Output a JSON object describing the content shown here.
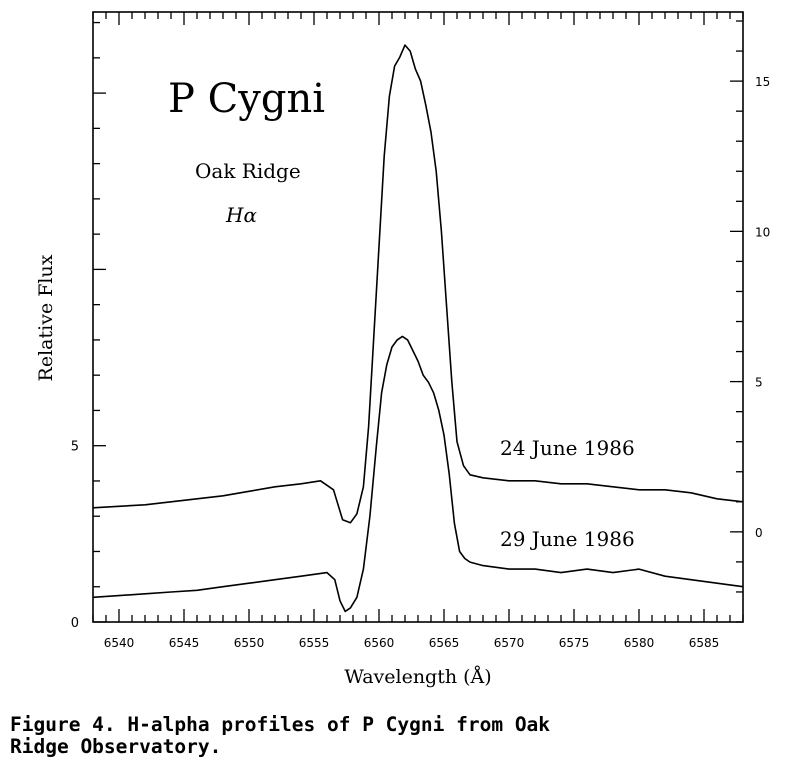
{
  "chart_data": {
    "type": "line",
    "title": "P Cygni",
    "annotations": [
      "Oak Ridge",
      "Hα"
    ],
    "xlabel": "Wavelength (Å)",
    "ylabel": "Relative Flux",
    "xlim": [
      6538,
      6588
    ],
    "x_ticks": [
      6540,
      6545,
      6550,
      6555,
      6560,
      6565,
      6570,
      6575,
      6580,
      6585
    ],
    "left_axis": {
      "ylim": [
        0,
        17.3
      ],
      "ticks": [
        0,
        5
      ]
    },
    "right_axis": {
      "ylim": [
        -3,
        17.3
      ],
      "ticks": [
        0,
        5,
        10,
        15
      ]
    },
    "series": [
      {
        "name": "24 June 1986",
        "axis": "right",
        "x": [
          6538,
          6540,
          6542,
          6544,
          6546,
          6548,
          6550,
          6552,
          6554,
          6555.5,
          6556.5,
          6557.2,
          6557.8,
          6558.3,
          6558.8,
          6559.2,
          6559.6,
          6560.0,
          6560.4,
          6560.8,
          6561.2,
          6561.6,
          6562.0,
          6562.4,
          6562.8,
          6563.2,
          6563.6,
          6564.0,
          6564.4,
          6564.8,
          6565.2,
          6565.6,
          6566.0,
          6566.5,
          6567,
          6568,
          6570,
          6572,
          6574,
          6576,
          6578,
          6580,
          6582,
          6584,
          6586,
          6588
        ],
        "y": [
          0.8,
          0.85,
          0.9,
          1.0,
          1.1,
          1.2,
          1.35,
          1.5,
          1.6,
          1.7,
          1.4,
          0.4,
          0.3,
          0.6,
          1.5,
          3.5,
          6.5,
          9.5,
          12.5,
          14.5,
          15.5,
          15.8,
          16.2,
          16.0,
          15.4,
          15.0,
          14.2,
          13.3,
          12.0,
          10.0,
          7.5,
          5.0,
          3.0,
          2.2,
          1.9,
          1.8,
          1.7,
          1.7,
          1.6,
          1.6,
          1.5,
          1.4,
          1.4,
          1.3,
          1.1,
          1.0
        ]
      },
      {
        "name": "29 June 1986",
        "axis": "left",
        "x": [
          6538,
          6540,
          6542,
          6544,
          6546,
          6548,
          6550,
          6552,
          6554,
          6556,
          6556.6,
          6557.0,
          6557.4,
          6557.8,
          6558.3,
          6558.8,
          6559.3,
          6559.8,
          6560.2,
          6560.6,
          6561.0,
          6561.4,
          6561.8,
          6562.2,
          6562.6,
          6563.0,
          6563.4,
          6563.8,
          6564.2,
          6564.6,
          6565.0,
          6565.4,
          6565.8,
          6566.2,
          6566.6,
          6567,
          6568,
          6570,
          6572,
          6574,
          6576,
          6578,
          6580,
          6582,
          6584,
          6586,
          6588
        ],
        "y": [
          0.7,
          0.75,
          0.8,
          0.85,
          0.9,
          1.0,
          1.1,
          1.2,
          1.3,
          1.4,
          1.2,
          0.6,
          0.3,
          0.4,
          0.7,
          1.5,
          3.0,
          5.0,
          6.5,
          7.3,
          7.8,
          8.0,
          8.1,
          8.0,
          7.7,
          7.4,
          7.0,
          6.8,
          6.5,
          6.0,
          5.3,
          4.2,
          2.8,
          2.0,
          1.8,
          1.7,
          1.6,
          1.5,
          1.5,
          1.4,
          1.5,
          1.4,
          1.5,
          1.3,
          1.2,
          1.1,
          1.0
        ]
      }
    ]
  },
  "caption": "Figure 4. H-alpha profiles of P Cygni from Oak\nRidge Observatory."
}
